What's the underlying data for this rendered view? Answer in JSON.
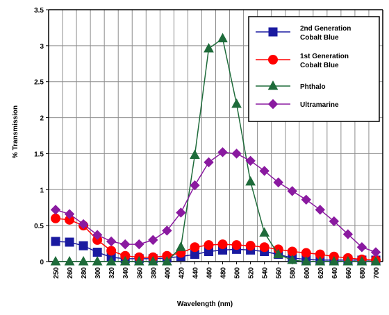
{
  "chart_data": {
    "type": "line",
    "xlabel": "Wavelength (nm)",
    "ylabel": "% Transmission",
    "ylim": [
      0,
      3.5
    ],
    "categories": [
      "250",
      "260",
      "280",
      "300",
      "320",
      "340",
      "360",
      "380",
      "400",
      "420",
      "440",
      "460",
      "480",
      "500",
      "520",
      "540",
      "560",
      "580",
      "600",
      "620",
      "640",
      "660",
      "680",
      "700"
    ],
    "y_ticks": [
      "0",
      "0.5",
      "1",
      "1.5",
      "2",
      "2.5",
      "3",
      "3.5"
    ],
    "grid": true,
    "legend_position": "top-right",
    "series": [
      {
        "name": "2nd Generation Cobalt Blue",
        "color": "#1a1aa0",
        "marker": "square",
        "values": [
          0.28,
          0.27,
          0.22,
          0.13,
          0.06,
          0.04,
          0.04,
          0.04,
          0.05,
          0.07,
          0.1,
          0.14,
          0.16,
          0.17,
          0.16,
          0.14,
          0.1,
          0.05,
          0.03,
          0.02,
          0.02,
          0.02,
          0.02,
          0.02
        ]
      },
      {
        "name": "1st Generation Cobalt Blue",
        "color": "#ff0000",
        "marker": "circle",
        "values": [
          0.6,
          0.58,
          0.5,
          0.3,
          0.15,
          0.08,
          0.06,
          0.06,
          0.08,
          0.12,
          0.2,
          0.23,
          0.24,
          0.23,
          0.22,
          0.2,
          0.17,
          0.14,
          0.12,
          0.1,
          0.07,
          0.05,
          0.03,
          0.02
        ]
      },
      {
        "name": "Phthalo",
        "color": "#1e6b3a",
        "marker": "triangle",
        "values": [
          0,
          0,
          0,
          0,
          0,
          0,
          0,
          0,
          0,
          0.2,
          1.48,
          2.96,
          3.1,
          2.19,
          1.11,
          0.4,
          0.1,
          0.02,
          0,
          0,
          0,
          0,
          0,
          0
        ]
      },
      {
        "name": "Ultramarine",
        "color": "#8a1aa0",
        "marker": "diamond",
        "values": [
          0.72,
          0.66,
          0.52,
          0.37,
          0.28,
          0.24,
          0.24,
          0.3,
          0.43,
          0.68,
          1.06,
          1.38,
          1.52,
          1.5,
          1.4,
          1.26,
          1.1,
          0.98,
          0.86,
          0.72,
          0.56,
          0.38,
          0.2,
          0.13
        ]
      }
    ]
  }
}
